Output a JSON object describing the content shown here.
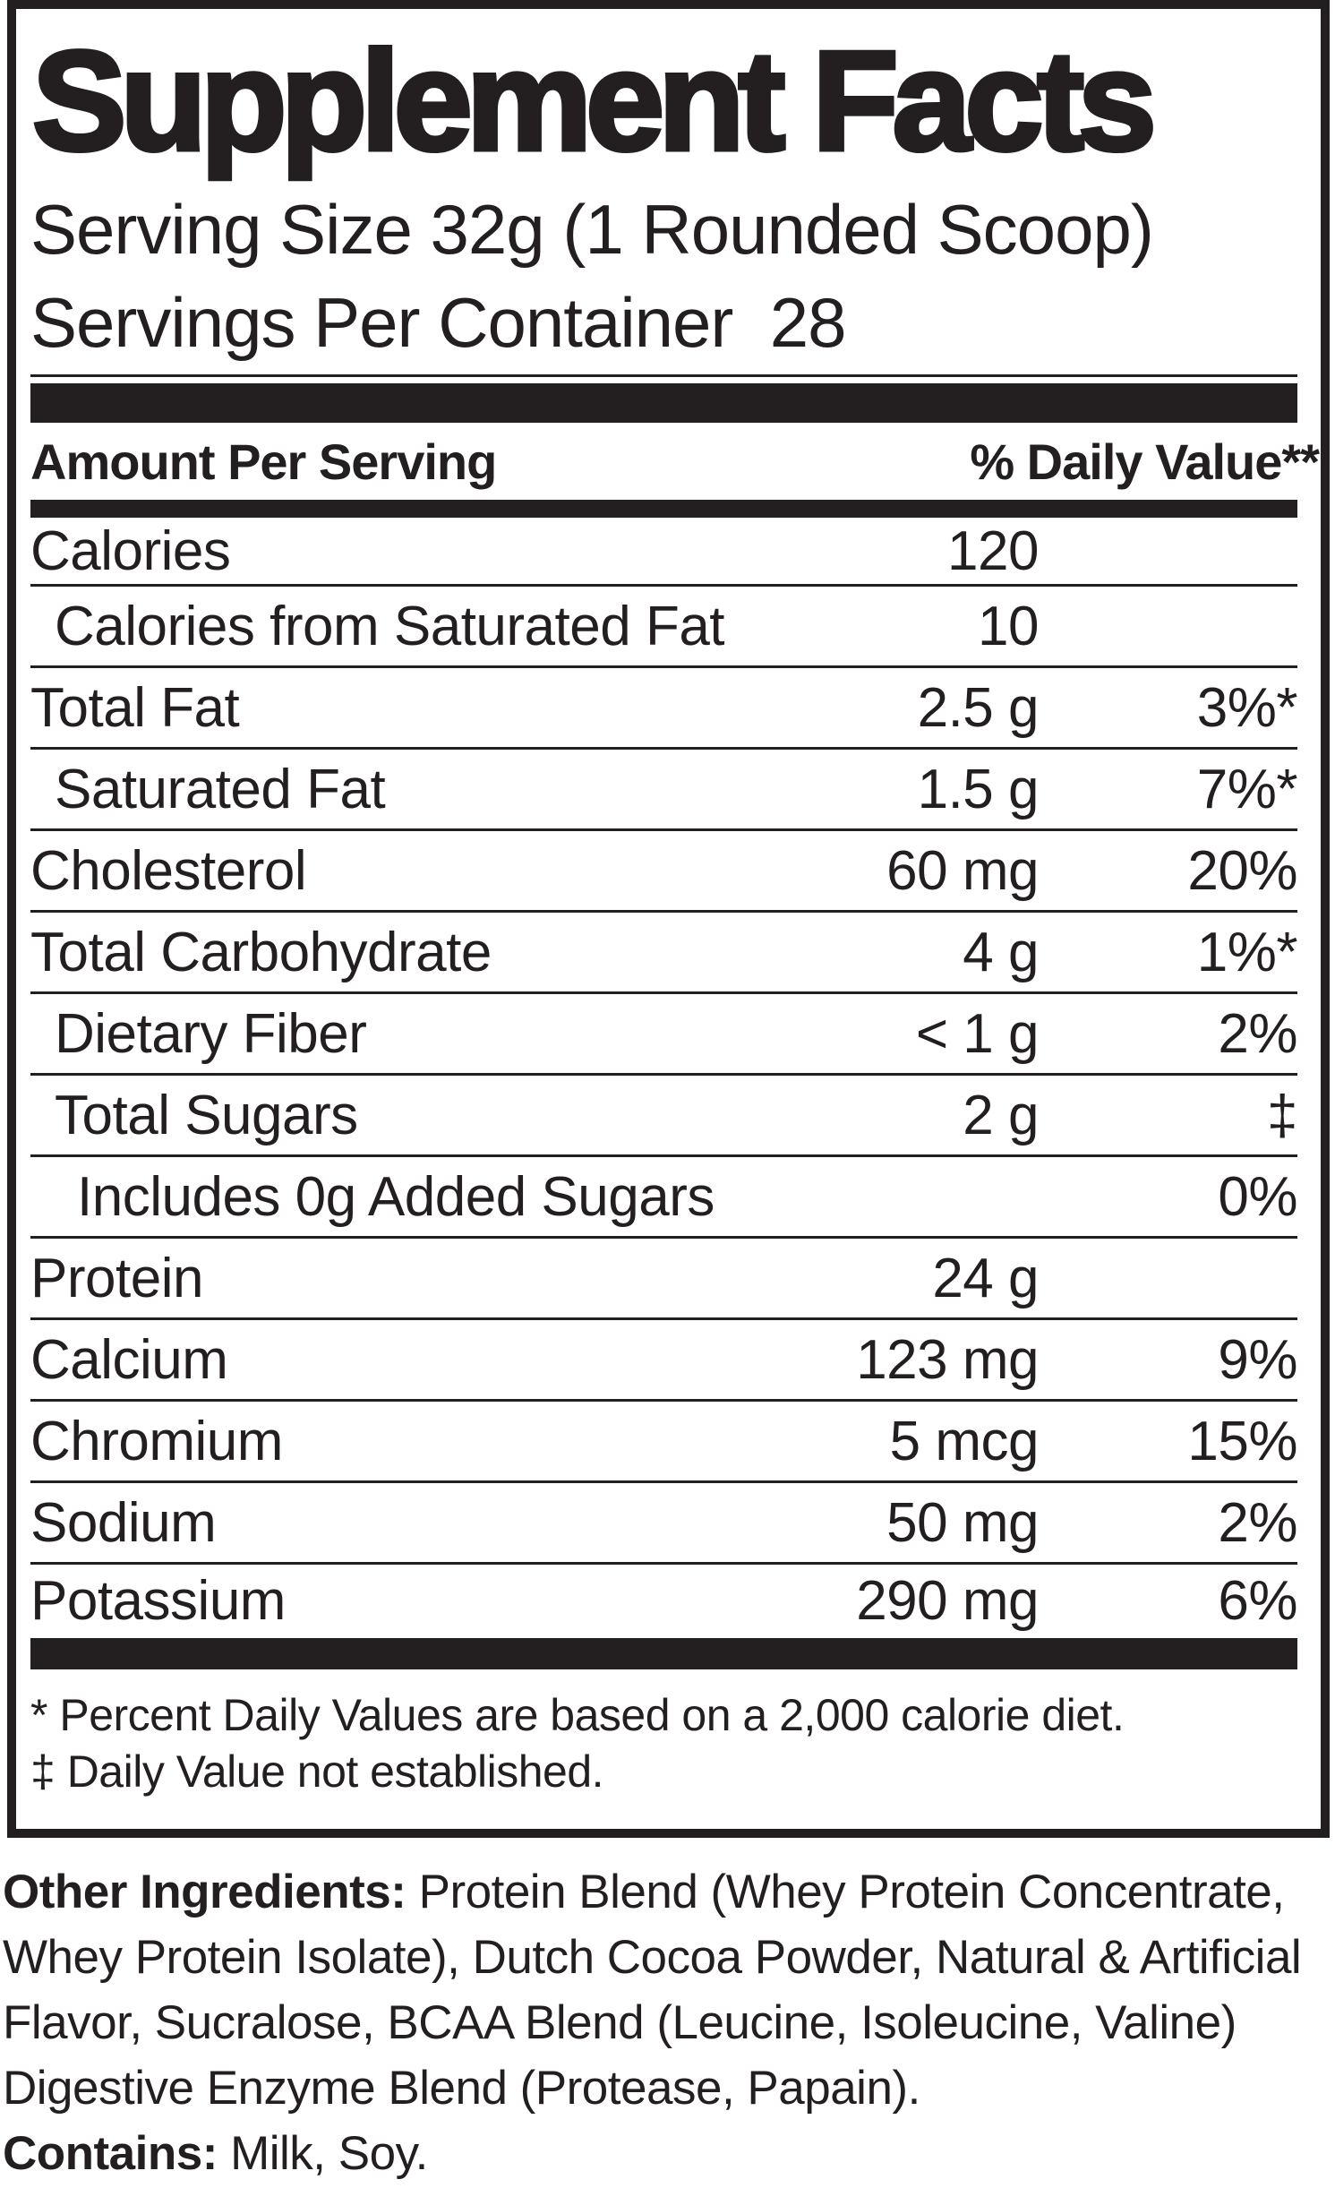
{
  "colors": {
    "ink": "#231f20",
    "background": "#ffffff"
  },
  "title": "Supplement Facts",
  "serving": {
    "serving_size": "Serving Size 32g (1 Rounded Scoop)",
    "servings_per_container": "Servings Per Container  28"
  },
  "table": {
    "header": {
      "amount_label": "Amount Per Serving",
      "dv_label": "% Daily Value**"
    },
    "rows": [
      {
        "label": "Calories",
        "amount": "120",
        "dv": "",
        "indent": 0
      },
      {
        "label": "Calories from Saturated Fat",
        "amount": "10",
        "dv": "",
        "indent": 1
      },
      {
        "label": "Total Fat",
        "amount": "2.5 g",
        "dv": "3%*",
        "indent": 0
      },
      {
        "label": "Saturated Fat",
        "amount": "1.5 g",
        "dv": "7%*",
        "indent": 1
      },
      {
        "label": "Cholesterol",
        "amount": "60 mg",
        "dv": "20%",
        "indent": 0
      },
      {
        "label": "Total Carbohydrate",
        "amount": "4 g",
        "dv": "1%*",
        "indent": 0
      },
      {
        "label": "Dietary Fiber",
        "amount": "< 1 g",
        "dv": "2%",
        "indent": 1
      },
      {
        "label": "Total Sugars",
        "amount": "2 g",
        "dv": "‡",
        "indent": 1
      },
      {
        "label": "Includes 0g Added Sugars",
        "amount": "",
        "dv": "0%",
        "indent": 2
      },
      {
        "label": "Protein",
        "amount": "24 g",
        "dv": "",
        "indent": 0
      },
      {
        "label": "Calcium",
        "amount": "123 mg",
        "dv": "9%",
        "indent": 0
      },
      {
        "label": "Chromium",
        "amount": "5 mcg",
        "dv": "15%",
        "indent": 0
      },
      {
        "label": "Sodium",
        "amount": "50 mg",
        "dv": "2%",
        "indent": 0
      },
      {
        "label": "Potassium",
        "amount": "290 mg",
        "dv": "6%",
        "indent": 0
      }
    ],
    "footnotes": [
      "* Percent Daily Values are based on a 2,000 calorie diet.",
      "‡ Daily Value not established."
    ]
  },
  "other_ingredients": {
    "label": "Other Ingredients:",
    "text": " Protein Blend (Whey Protein Concentrate, Whey Protein Isolate), Dutch Cocoa Powder, Natural & Artificial Flavor, Sucralose, BCAA Blend (Leucine, Isoleucine, Valine) Digestive Enzyme Blend (Protease, Papain)."
  },
  "contains": {
    "label": "Contains:",
    "text": " Milk, Soy."
  }
}
